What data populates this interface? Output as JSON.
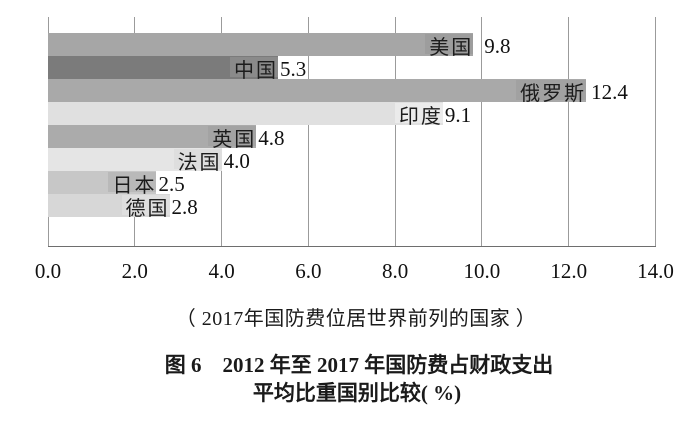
{
  "chart_data": {
    "type": "bar",
    "orientation": "horizontal",
    "title": "图 6　2012 年至 2017 年国防费占财政支出 平均比重国别比较( %)",
    "title_line1": "图 6　2012 年至 2017 年国防费占财政支出",
    "title_line2": "平均比重国别比较( %)",
    "subtitle": "（ 2017年国防费位居世界前列的国家 ）",
    "categories": [
      "美国",
      "中国",
      "俄罗斯",
      "印度",
      "英国",
      "法国",
      "日本",
      "德国"
    ],
    "values": [
      9.8,
      5.3,
      12.4,
      9.1,
      4.8,
      4.0,
      2.5,
      2.8
    ],
    "value_labels": [
      "9.8",
      "5.3",
      "12.4",
      "9.1",
      "4.8",
      "4.0",
      "2.5",
      "2.8"
    ],
    "bar_colors": [
      "#a6a6a6",
      "#7b7b7b",
      "#a9a9a9",
      "#e0e0e0",
      "#ababab",
      "#e5e5e5",
      "#c7c7c7",
      "#d7d7d7"
    ],
    "label_bg_colors": [
      "#9d9d9d",
      "#8a8a8a",
      "#a1a1a1",
      "#ebebeb",
      "#a3a3a3",
      "#dedede",
      "#b9b9b9",
      "#dfdfdf"
    ],
    "category_keys": [
      "usa",
      "china",
      "russia",
      "india",
      "uk",
      "france",
      "japan",
      "germany"
    ],
    "x_ticks": [
      "0.0",
      "2.0",
      "4.0",
      "6.0",
      "8.0",
      "10.0",
      "12.0",
      "14.0"
    ],
    "xlim": [
      0,
      14
    ],
    "grid": true,
    "legend": false,
    "background": "#ffffff",
    "gridline_color": "#9b9b9b",
    "axis_color": "#6e6e6e"
  }
}
